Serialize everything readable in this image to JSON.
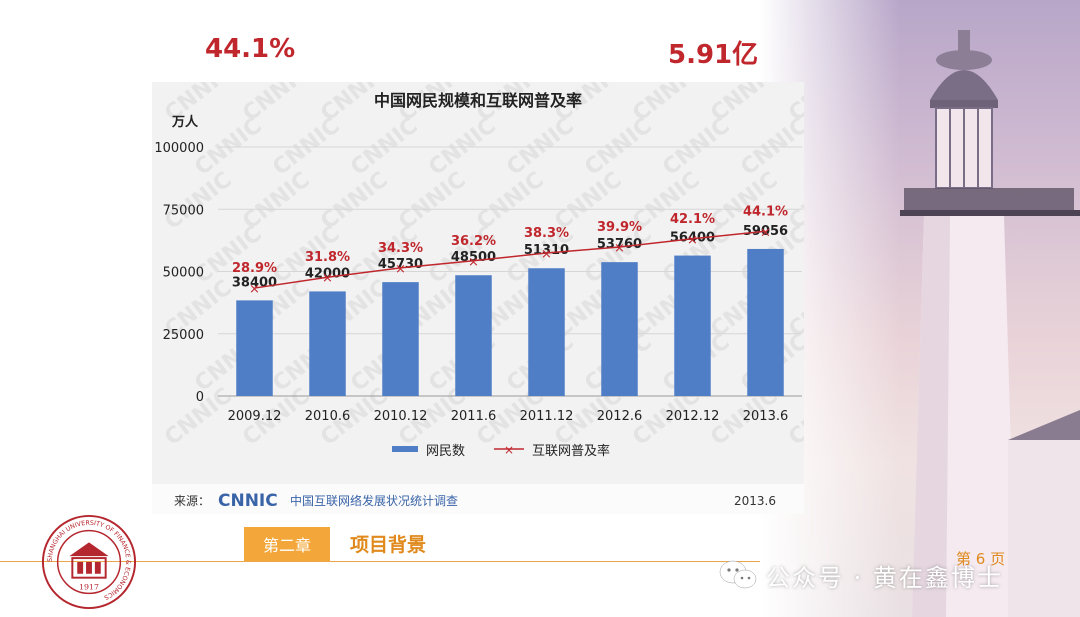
{
  "stats": {
    "rate": "44.1%",
    "users": "5.91亿"
  },
  "chart_data": {
    "type": "bar",
    "title": "中国网民规模和互联网普及率",
    "ylabel": "万人",
    "ylim": [
      0,
      100000
    ],
    "yticks": [
      0,
      25000,
      50000,
      75000,
      100000
    ],
    "categories": [
      "2009.12",
      "2010.6",
      "2010.12",
      "2011.6",
      "2011.12",
      "2012.6",
      "2012.12",
      "2013.6"
    ],
    "series": [
      {
        "name": "网民数",
        "kind": "bar",
        "values": [
          38400,
          42000,
          45730,
          48500,
          51310,
          53760,
          56400,
          59056
        ]
      },
      {
        "name": "互联网普及率",
        "kind": "line",
        "values": [
          28.9,
          31.8,
          34.3,
          36.2,
          38.3,
          39.9,
          42.1,
          44.1
        ],
        "labels": [
          "28.9%",
          "31.8%",
          "34.3%",
          "36.2%",
          "38.3%",
          "39.9%",
          "42.1%",
          "44.1%"
        ]
      }
    ],
    "grid": true,
    "legend": "bottom",
    "source_label": "来源：",
    "source_brand": "CNNIC",
    "source_text": "中国互联网络发展状况统计调查",
    "source_date": "2013.6",
    "watermark": "CNNIC",
    "bar_color": "#4f7ec6",
    "line_color": "#c0272d"
  },
  "footer": {
    "chapter_badge": "第二章",
    "chapter_title": "项目背景",
    "page": "第 6 页",
    "wechat": "公众号 · 黄在鑫博士"
  },
  "logo": {
    "text_ring": "SHANGHAI UNIVERSITY OF FINANCE & ECONOMICS",
    "year": "1917",
    "color": "#b5272e"
  },
  "icons": {
    "wechat": "wechat-icon",
    "logo": "university-seal",
    "decor": "lighthouse"
  }
}
